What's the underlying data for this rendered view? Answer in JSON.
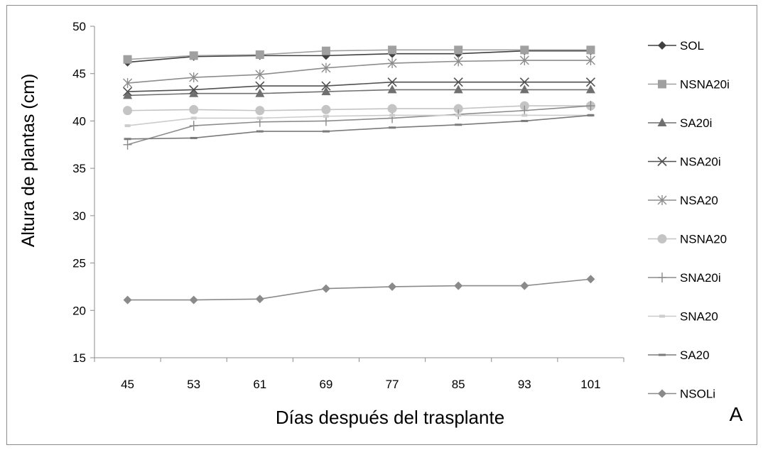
{
  "chart_data": {
    "type": "line",
    "xlabel": "Días después del trasplante",
    "ylabel": "Altura de plantas (cm)",
    "panel_label": "A",
    "categories": [
      "45",
      "53",
      "61",
      "69",
      "77",
      "85",
      "93",
      "101"
    ],
    "ylim": [
      15,
      50
    ],
    "yticks": [
      "15",
      "20",
      "25",
      "30",
      "35",
      "40",
      "45",
      "50"
    ],
    "grid": false,
    "legend_position": "right",
    "series": [
      {
        "name": "SOL",
        "marker": "diamond",
        "color": "#404040",
        "values": [
          46.2,
          46.8,
          46.9,
          46.9,
          47.1,
          47.1,
          47.4,
          47.4
        ]
      },
      {
        "name": "NSNA20i",
        "marker": "square",
        "color": "#a0a0a0",
        "values": [
          46.5,
          46.9,
          47.0,
          47.4,
          47.5,
          47.5,
          47.5,
          47.5
        ]
      },
      {
        "name": "SA20i",
        "marker": "triangle",
        "color": "#707070",
        "values": [
          42.7,
          42.9,
          42.9,
          43.1,
          43.3,
          43.3,
          43.3,
          43.3
        ]
      },
      {
        "name": "NSA20i",
        "marker": "x",
        "color": "#505050",
        "values": [
          43.1,
          43.3,
          43.7,
          43.7,
          44.1,
          44.1,
          44.1,
          44.1
        ]
      },
      {
        "name": "NSA20",
        "marker": "asterisk",
        "color": "#8c8c8c",
        "values": [
          44.0,
          44.6,
          44.9,
          45.6,
          46.1,
          46.3,
          46.4,
          46.4
        ]
      },
      {
        "name": "NSNA20",
        "marker": "circle",
        "color": "#c4c4c4",
        "values": [
          41.1,
          41.2,
          41.1,
          41.2,
          41.3,
          41.3,
          41.6,
          41.6
        ]
      },
      {
        "name": "SNA20i",
        "marker": "plus",
        "color": "#8c8c8c",
        "values": [
          37.5,
          39.5,
          39.9,
          40.0,
          40.3,
          40.7,
          41.1,
          41.6
        ]
      },
      {
        "name": "SNA20",
        "marker": "dash",
        "color": "#cccccc",
        "values": [
          39.5,
          40.3,
          40.3,
          40.5,
          40.6,
          40.6,
          40.6,
          40.6
        ]
      },
      {
        "name": "SA20",
        "marker": "bar",
        "color": "#7a7a7a",
        "values": [
          38.1,
          38.2,
          38.9,
          38.9,
          39.3,
          39.6,
          40.0,
          40.6
        ]
      },
      {
        "name": "NSOLi",
        "marker": "diamond",
        "color": "#8a8a8a",
        "values": [
          21.1,
          21.1,
          21.2,
          22.3,
          22.5,
          22.6,
          22.6,
          23.3
        ]
      }
    ]
  }
}
